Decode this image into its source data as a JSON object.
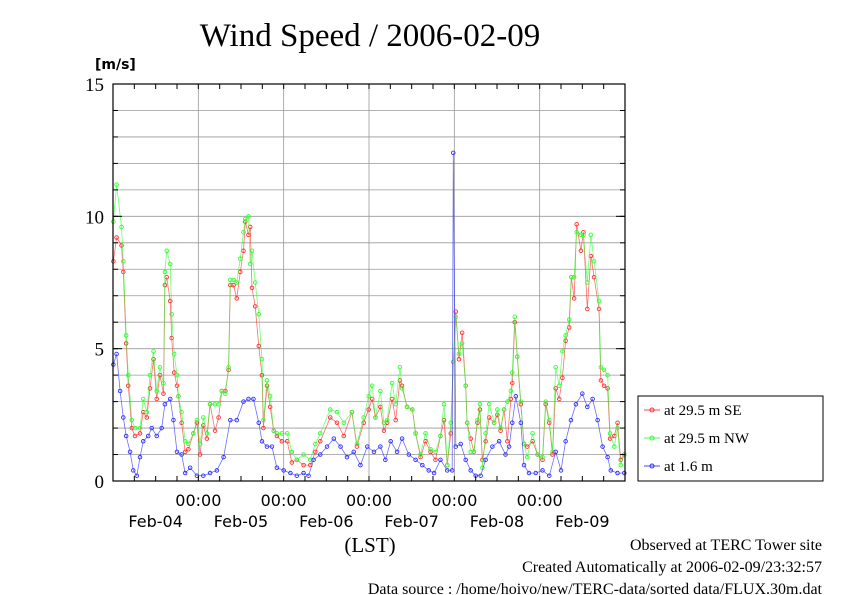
{
  "chart_data": {
    "type": "line",
    "title": "Wind Speed / 2006-02-09",
    "ylabel": "[m/s]",
    "xlabel": "(LST)",
    "x_units": "hours since Feb-04 00:00",
    "xlim": [
      0,
      144
    ],
    "ylim": [
      0,
      15
    ],
    "y_ticks": [
      0,
      5,
      10,
      15
    ],
    "y_grid_step": 1,
    "x_tick_hours": [
      24,
      48,
      72,
      96,
      120
    ],
    "x_tick_labels": [
      "00:00",
      "00:00",
      "00:00",
      "00:00",
      "00:00"
    ],
    "day_labels": [
      "Feb-04",
      "Feb-05",
      "Feb-06",
      "Feb-07",
      "Feb-08",
      "Feb-09"
    ],
    "legend_position": "right",
    "series": [
      {
        "name": "at 29.5 m SE",
        "color": "#ff3030",
        "x": [
          0.1,
          1.0,
          2.4,
          2.9,
          3.7,
          4.3,
          5.3,
          6.2,
          7.6,
          8.5,
          9.5,
          10.4,
          11.4,
          12.3,
          13.2,
          14.2,
          14.6,
          15.1,
          16.1,
          16.5,
          17.2,
          18.0,
          18.4,
          19.3,
          20.3,
          21.2,
          22.6,
          23.6,
          24.5,
          25.4,
          26.4,
          27.3,
          28.7,
          29.7,
          30.6,
          31.6,
          32.5,
          33.0,
          33.9,
          34.8,
          35.8,
          36.7,
          37.2,
          38.1,
          38.6,
          39.1,
          40.0,
          41.0,
          41.9,
          42.3,
          43.3,
          44.2,
          45.2,
          46.1,
          47.5,
          49.0,
          50.3,
          51.7,
          53.6,
          55.5,
          56.9,
          58.3,
          61.1,
          63.0,
          64.9,
          67.2,
          68.6,
          70.5,
          71.9,
          72.9,
          73.8,
          75.2,
          76.2,
          77.1,
          78.5,
          79.5,
          80.7,
          81.3,
          82.7,
          84.2,
          85.1,
          86.5,
          87.9,
          89.3,
          90.7,
          92.1,
          93.1,
          94.0,
          95.0,
          95.7,
          96.4,
          97.3,
          98.2,
          99.2,
          99.6,
          100.6,
          101.5,
          102.5,
          103.2,
          103.9,
          104.8,
          105.8,
          107.2,
          108.1,
          109.0,
          110.0,
          110.9,
          111.9,
          112.3,
          113.0,
          113.7,
          114.7,
          115.6,
          116.5,
          118.0,
          119.4,
          120.8,
          121.7,
          122.7,
          123.6,
          124.5,
          125.5,
          126.4,
          127.3,
          128.3,
          128.9,
          129.7,
          130.4,
          131.6,
          132.3,
          133.4,
          134.4,
          135.3,
          136.7,
          137.2,
          138.1,
          139.1,
          139.8,
          141.0,
          141.9,
          142.8,
          143.8
        ],
        "y": [
          8.3,
          9.2,
          8.9,
          7.9,
          5.2,
          3.6,
          2.0,
          1.7,
          1.8,
          2.6,
          2.4,
          3.5,
          4.6,
          3.1,
          4.0,
          3.3,
          7.4,
          7.7,
          6.8,
          5.4,
          4.1,
          3.6,
          3.2,
          2.2,
          1.1,
          1.2,
          1.8,
          2.2,
          1.0,
          2.1,
          1.6,
          2.9,
          1.9,
          2.4,
          3.4,
          3.4,
          4.2,
          7.4,
          7.4,
          6.9,
          7.9,
          8.7,
          9.8,
          9.3,
          9.6,
          7.3,
          6.6,
          5.1,
          4.0,
          2.0,
          3.6,
          2.8,
          1.9,
          1.7,
          1.5,
          1.5,
          0.7,
          0.8,
          0.6,
          0.6,
          1.1,
          1.5,
          2.4,
          2.2,
          1.7,
          2.6,
          1.3,
          2.2,
          2.7,
          3.1,
          2.4,
          2.8,
          1.9,
          2.2,
          3.1,
          2.3,
          3.8,
          3.6,
          2.8,
          2.7,
          1.8,
          0.9,
          1.5,
          1.1,
          0.8,
          1.7,
          2.3,
          0.6,
          1.8,
          4.5,
          6.4,
          4.6,
          5.6,
          3.6,
          2.2,
          1.6,
          1.1,
          2.2,
          2.7,
          0.8,
          1.5,
          2.4,
          2.2,
          2.5,
          1.9,
          2.7,
          1.5,
          3.1,
          3.7,
          6.0,
          4.7,
          2.9,
          1.4,
          1.3,
          1.5,
          1.0,
          0.8,
          2.9,
          2.2,
          1.0,
          3.5,
          3.1,
          3.9,
          5.3,
          5.8,
          7.7,
          6.9,
          9.7,
          8.7,
          9.4,
          6.5,
          8.5,
          7.7,
          6.5,
          3.8,
          3.6,
          3.5,
          1.6,
          1.7,
          2.2,
          0.8,
          1.0
        ]
      },
      {
        "name": "at 29.5 m NW",
        "color": "#30ff30",
        "x": [
          0.1,
          1.0,
          2.4,
          2.9,
          3.7,
          4.3,
          5.3,
          6.2,
          7.6,
          8.5,
          9.5,
          10.4,
          11.4,
          12.3,
          13.2,
          14.2,
          14.6,
          15.1,
          16.1,
          16.5,
          17.2,
          18.0,
          18.4,
          19.3,
          20.3,
          21.2,
          22.6,
          23.6,
          24.5,
          25.4,
          26.4,
          27.3,
          28.7,
          29.7,
          30.6,
          31.6,
          32.5,
          33.0,
          33.9,
          34.8,
          35.8,
          36.7,
          37.2,
          38.1,
          38.6,
          39.1,
          40.0,
          41.0,
          41.9,
          42.3,
          43.3,
          44.2,
          45.2,
          46.1,
          47.5,
          49.0,
          50.3,
          51.7,
          53.6,
          55.5,
          56.9,
          58.3,
          61.1,
          63.0,
          64.9,
          67.2,
          68.6,
          70.5,
          71.9,
          72.9,
          73.8,
          75.2,
          76.2,
          77.1,
          78.5,
          79.5,
          80.7,
          81.3,
          82.7,
          84.2,
          85.1,
          86.5,
          87.9,
          89.3,
          90.7,
          92.1,
          93.1,
          94.0,
          95.0,
          95.7,
          96.4,
          97.3,
          98.2,
          99.2,
          99.6,
          100.6,
          101.5,
          102.5,
          103.2,
          103.9,
          104.8,
          105.8,
          107.2,
          108.1,
          109.0,
          110.0,
          110.9,
          111.9,
          112.3,
          113.0,
          113.7,
          114.7,
          115.6,
          116.5,
          118.0,
          119.4,
          120.8,
          121.7,
          122.7,
          123.6,
          124.5,
          125.5,
          126.4,
          127.3,
          128.3,
          128.9,
          129.7,
          130.4,
          131.6,
          132.3,
          133.4,
          134.4,
          135.3,
          136.7,
          137.2,
          138.1,
          139.1,
          139.8,
          141.0,
          141.9,
          142.8,
          143.8
        ],
        "y": [
          9.8,
          11.2,
          9.6,
          8.3,
          5.5,
          4.0,
          2.3,
          2.0,
          2.0,
          3.1,
          2.6,
          4.0,
          4.9,
          3.4,
          4.3,
          3.7,
          7.9,
          8.7,
          8.2,
          6.3,
          4.8,
          4.0,
          3.2,
          2.6,
          1.5,
          1.4,
          1.8,
          2.3,
          1.4,
          2.4,
          1.8,
          2.9,
          2.9,
          2.9,
          3.4,
          3.3,
          4.3,
          7.6,
          7.6,
          7.5,
          8.4,
          9.4,
          9.9,
          10.0,
          8.2,
          8.7,
          7.5,
          6.3,
          4.6,
          2.3,
          3.8,
          3.2,
          1.9,
          1.8,
          1.8,
          1.8,
          1.1,
          0.8,
          1.0,
          0.8,
          1.4,
          1.8,
          2.7,
          2.6,
          2.2,
          2.6,
          1.4,
          2.4,
          3.2,
          3.6,
          2.4,
          3.4,
          2.2,
          2.3,
          3.7,
          2.9,
          4.3,
          3.5,
          2.8,
          2.7,
          1.8,
          1.0,
          1.8,
          1.2,
          1.1,
          1.7,
          2.9,
          0.6,
          2.2,
          4.5,
          6.2,
          4.8,
          5.2,
          3.6,
          2.2,
          1.1,
          1.1,
          2.3,
          2.9,
          0.5,
          1.8,
          2.9,
          2.2,
          2.7,
          2.0,
          2.7,
          3.0,
          3.4,
          4.1,
          6.2,
          4.7,
          3.0,
          1.4,
          0.9,
          1.8,
          1.0,
          0.9,
          3.0,
          2.3,
          1.1,
          4.3,
          3.6,
          4.9,
          5.5,
          6.1,
          7.7,
          7.7,
          9.4,
          9.3,
          9.3,
          7.5,
          9.3,
          8.3,
          6.8,
          4.3,
          4.2,
          4.0,
          1.8,
          1.3,
          2.0,
          0.6,
          1.0
        ]
      },
      {
        "name": "at 1.6 m",
        "color": "#3030ff",
        "x": [
          0.1,
          1.0,
          2.0,
          2.9,
          3.7,
          4.8,
          5.7,
          6.7,
          7.6,
          8.5,
          9.9,
          10.9,
          12.3,
          13.7,
          14.6,
          16.1,
          17.0,
          18.0,
          19.3,
          20.3,
          21.7,
          23.6,
          25.4,
          27.3,
          29.2,
          31.1,
          33.0,
          34.8,
          36.7,
          38.1,
          39.5,
          41.0,
          41.9,
          43.3,
          44.7,
          46.1,
          48.0,
          49.9,
          51.7,
          53.6,
          55.0,
          56.4,
          58.3,
          60.2,
          62.1,
          64.0,
          65.8,
          67.7,
          69.6,
          71.5,
          73.4,
          75.2,
          76.6,
          78.1,
          79.9,
          81.3,
          83.2,
          85.1,
          87.0,
          88.8,
          90.3,
          92.1,
          94.0,
          95.4,
          95.7,
          96.4,
          97.8,
          99.2,
          100.6,
          102.0,
          103.4,
          104.8,
          106.7,
          108.6,
          110.4,
          111.4,
          112.3,
          113.3,
          114.7,
          115.6,
          117.0,
          118.9,
          120.8,
          122.7,
          124.5,
          126.0,
          127.3,
          128.8,
          130.2,
          132.0,
          133.4,
          134.9,
          136.3,
          137.7,
          139.1,
          140.0,
          141.9,
          143.8
        ],
        "y": [
          4.4,
          4.8,
          3.4,
          2.4,
          1.7,
          1.1,
          0.4,
          0.2,
          0.9,
          1.5,
          1.7,
          2.0,
          1.7,
          2.0,
          2.9,
          3.1,
          2.3,
          1.1,
          1.0,
          0.3,
          0.5,
          0.2,
          0.2,
          0.3,
          0.4,
          0.9,
          2.3,
          2.3,
          3.0,
          3.1,
          3.1,
          2.2,
          1.5,
          1.3,
          1.3,
          0.5,
          0.4,
          0.3,
          0.2,
          0.3,
          0.2,
          0.8,
          1.0,
          1.3,
          1.6,
          1.3,
          0.9,
          1.1,
          0.6,
          1.3,
          1.1,
          1.3,
          0.8,
          1.5,
          1.1,
          1.6,
          1.0,
          0.8,
          0.6,
          0.4,
          0.3,
          0.8,
          0.4,
          0.4,
          12.4,
          1.3,
          1.4,
          0.8,
          0.4,
          0.2,
          0.2,
          0.8,
          1.3,
          1.5,
          1.0,
          1.3,
          2.2,
          3.2,
          2.2,
          0.6,
          0.3,
          0.3,
          0.4,
          0.2,
          1.1,
          0.4,
          1.5,
          2.3,
          2.9,
          3.3,
          2.8,
          3.1,
          2.3,
          1.3,
          0.9,
          0.4,
          0.3,
          0.3
        ]
      }
    ]
  },
  "footer": {
    "site": "Observed at TERC Tower site",
    "created": "Created Automatically at 2006-02-09/23:32:57",
    "source": "Data source : /home/hoivo/new/TERC-data/sorted  data/FLUX.30m.dat"
  }
}
